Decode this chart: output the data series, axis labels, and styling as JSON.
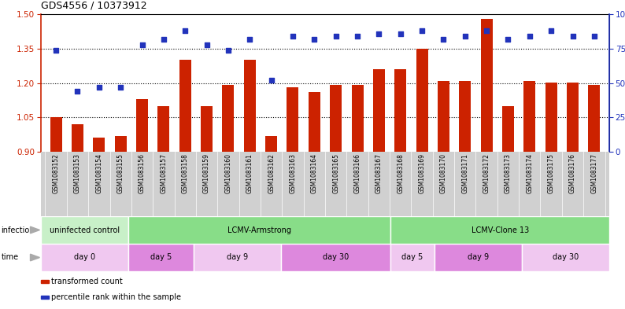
{
  "title": "GDS4556 / 10373912",
  "samples": [
    "GSM1083152",
    "GSM1083153",
    "GSM1083154",
    "GSM1083155",
    "GSM1083156",
    "GSM1083157",
    "GSM1083158",
    "GSM1083159",
    "GSM1083160",
    "GSM1083161",
    "GSM1083162",
    "GSM1083163",
    "GSM1083164",
    "GSM1083165",
    "GSM1083166",
    "GSM1083167",
    "GSM1083168",
    "GSM1083169",
    "GSM1083170",
    "GSM1083171",
    "GSM1083172",
    "GSM1083173",
    "GSM1083174",
    "GSM1083175",
    "GSM1083176",
    "GSM1083177"
  ],
  "bar_values": [
    1.05,
    1.02,
    0.96,
    0.97,
    1.13,
    1.1,
    1.3,
    1.1,
    1.19,
    1.3,
    0.97,
    1.18,
    1.16,
    1.19,
    1.19,
    1.26,
    1.26,
    1.35,
    1.21,
    1.21,
    1.48,
    1.1,
    1.21,
    1.2,
    1.2,
    1.19
  ],
  "scatter_values": [
    74,
    44,
    47,
    47,
    78,
    82,
    88,
    78,
    74,
    82,
    52,
    84,
    82,
    84,
    84,
    86,
    86,
    88,
    82,
    84,
    88,
    82,
    84,
    88,
    84,
    84
  ],
  "bar_color": "#cc2200",
  "scatter_color": "#2233bb",
  "left_ylim": [
    0.9,
    1.5
  ],
  "right_ylim": [
    0,
    100
  ],
  "left_yticks": [
    0.9,
    1.05,
    1.2,
    1.35,
    1.5
  ],
  "right_yticks": [
    0,
    25,
    50,
    75,
    100
  ],
  "right_yticklabels": [
    "0",
    "25",
    "50",
    "75",
    "100%"
  ],
  "dotted_lines": [
    1.05,
    1.2,
    1.35
  ],
  "infection_groups": [
    {
      "label": "uninfected control",
      "start": 0,
      "end": 4,
      "color": "#c8f0c8"
    },
    {
      "label": "LCMV-Armstrong",
      "start": 4,
      "end": 16,
      "color": "#88dd88"
    },
    {
      "label": "LCMV-Clone 13",
      "start": 16,
      "end": 26,
      "color": "#88dd88"
    }
  ],
  "time_groups": [
    {
      "label": "day 0",
      "start": 0,
      "end": 4,
      "color": "#f0c8f0"
    },
    {
      "label": "day 5",
      "start": 4,
      "end": 7,
      "color": "#dd88dd"
    },
    {
      "label": "day 9",
      "start": 7,
      "end": 11,
      "color": "#f0c8f0"
    },
    {
      "label": "day 30",
      "start": 11,
      "end": 16,
      "color": "#dd88dd"
    },
    {
      "label": "day 5",
      "start": 16,
      "end": 18,
      "color": "#f0c8f0"
    },
    {
      "label": "day 9",
      "start": 18,
      "end": 22,
      "color": "#dd88dd"
    },
    {
      "label": "day 30",
      "start": 22,
      "end": 26,
      "color": "#f0c8f0"
    }
  ],
  "legend_bar_label": "transformed count",
  "legend_scatter_label": "percentile rank within the sample",
  "xtick_bg_color": "#d0d0d0",
  "arrow_color": "#aaaaaa"
}
